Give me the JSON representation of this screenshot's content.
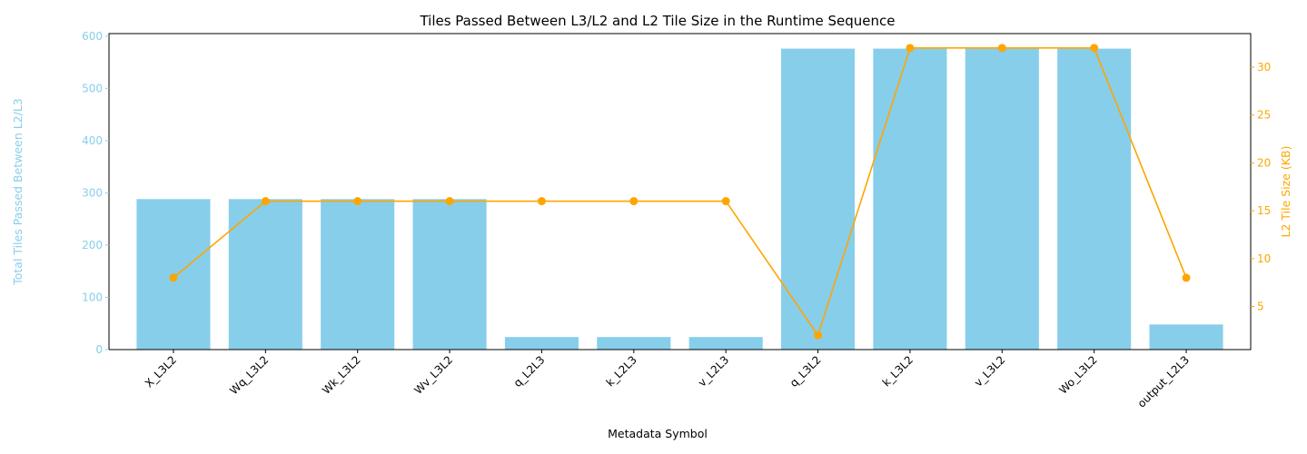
{
  "chart_data": {
    "type": "bar",
    "title": "Tiles Passed Between L3/L2 and L2 Tile Size in the Runtime Sequence",
    "xlabel": "Metadata Symbol",
    "categories": [
      "X_L3L2",
      "Wq_L3L2",
      "Wk_L3L2",
      "Wv_L3L2",
      "q_L2L3",
      "k_L2L3",
      "v_L2L3",
      "q_L3L2",
      "k_L3L2",
      "v_L3L2",
      "Wo_L3L2",
      "output_L2L3"
    ],
    "bar_series": {
      "axis_label": "Total Tiles Passed Between L2/L3",
      "color": "#87CEEB",
      "values": [
        288,
        288,
        288,
        288,
        24,
        24,
        24,
        576,
        576,
        576,
        576,
        48
      ]
    },
    "line_series": {
      "axis_label": "L2 Tile Size (KB)",
      "color": "#FFA500",
      "values": [
        8,
        16,
        16,
        16,
        16,
        16,
        16,
        2,
        32,
        32,
        32,
        8
      ]
    },
    "y_left": {
      "ylim": [
        0,
        604.8
      ],
      "ticks": [
        0,
        100,
        200,
        300,
        400,
        500,
        600
      ]
    },
    "y_right": {
      "ylim": [
        0.5,
        33.5
      ],
      "ticks": [
        5,
        10,
        15,
        20,
        25,
        30
      ]
    },
    "grid": false
  }
}
